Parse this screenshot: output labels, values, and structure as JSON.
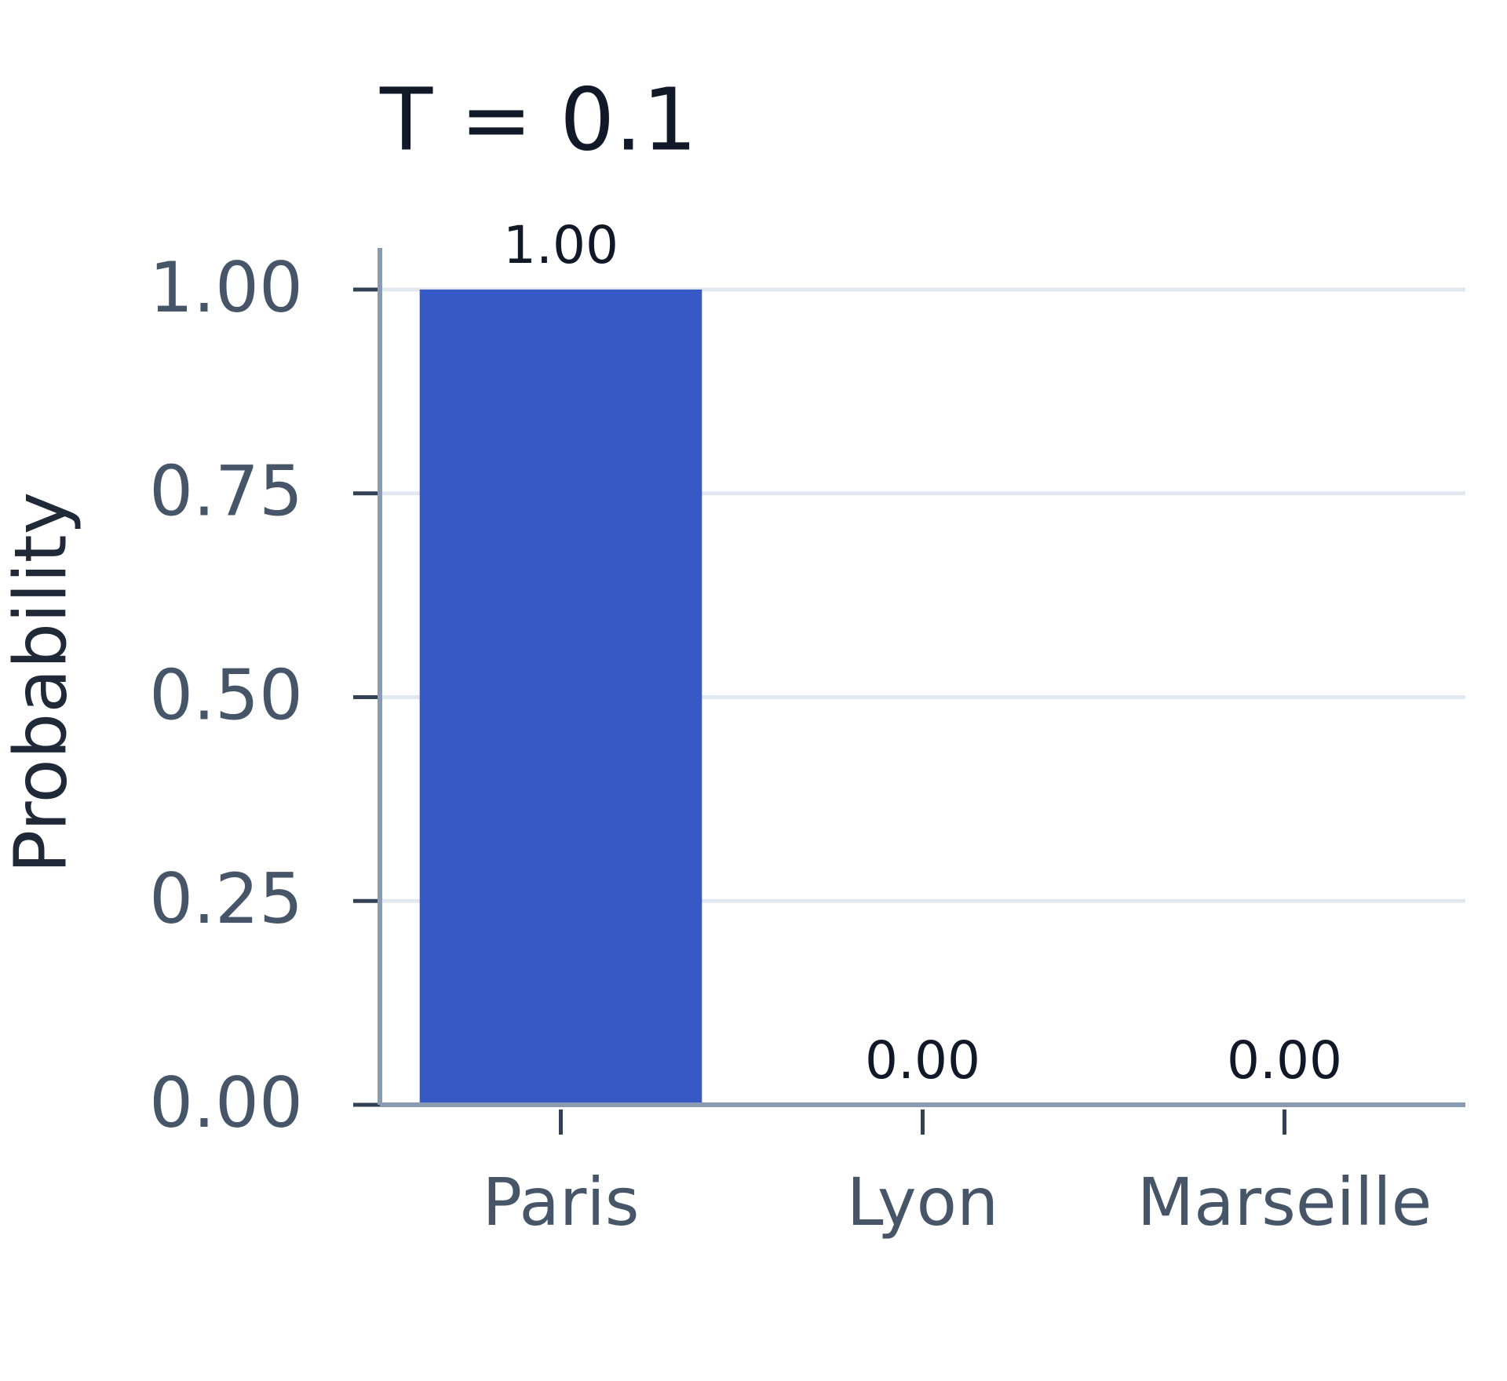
{
  "chart_data": {
    "type": "bar",
    "title": "T = 0.1",
    "ylabel": "Probability",
    "categories": [
      "Paris",
      "Lyon",
      "Marseille"
    ],
    "values": [
      1,
      0,
      0
    ],
    "value_labels": [
      "1.00",
      "0.00",
      "0.00"
    ],
    "color": "#3759c6",
    "ylim": [
      0,
      1
    ],
    "yticks": [
      {
        "value": 0,
        "label": "0.00"
      },
      0.25,
      {
        "value": 0.5,
        "label": "0.50"
      },
      0.75,
      {
        "value": 1,
        "label": "1.00"
      }
    ],
    "grid": true
  }
}
